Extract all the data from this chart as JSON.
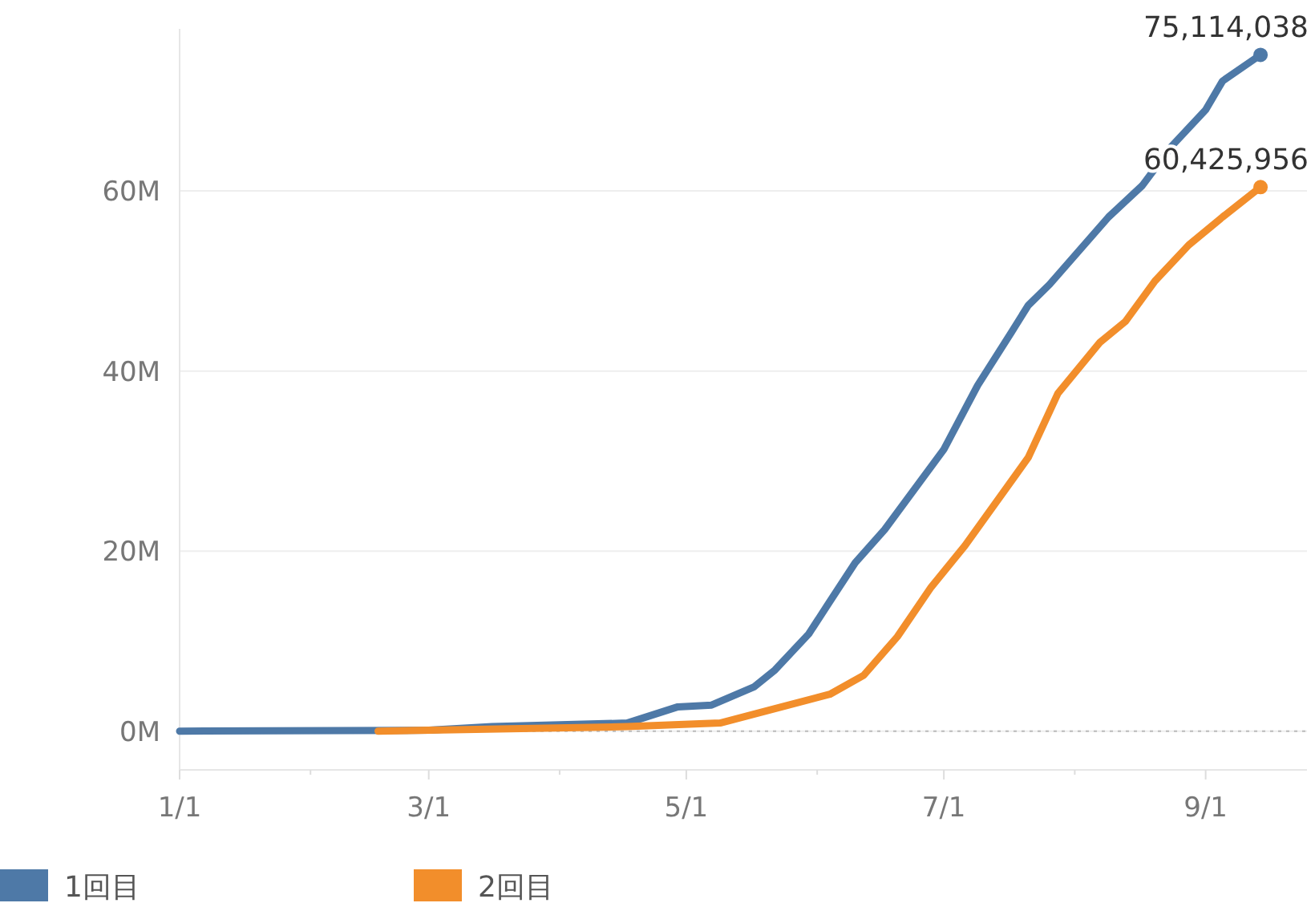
{
  "chart_data": {
    "type": "line",
    "xlim": [
      "--01-01",
      "--09-25"
    ],
    "xticks": [
      {
        "value": "--01-01",
        "label": "1/1"
      },
      {
        "value": "--02-01",
        "label": null
      },
      {
        "value": "--03-01",
        "label": "3/1"
      },
      {
        "value": "--04-01",
        "label": null
      },
      {
        "value": "--05-01",
        "label": "5/1"
      },
      {
        "value": "--06-01",
        "label": null
      },
      {
        "value": "--07-01",
        "label": "7/1"
      },
      {
        "value": "--08-01",
        "label": null
      },
      {
        "value": "--09-01",
        "label": "9/1"
      }
    ],
    "ylim": [
      -4300000,
      78000000
    ],
    "yticks": [
      {
        "value": 0,
        "label": "0M"
      },
      {
        "value": 20000000,
        "label": "20M"
      },
      {
        "value": 40000000,
        "label": "40M"
      },
      {
        "value": 60000000,
        "label": "60M"
      }
    ],
    "grid": "y",
    "legend": "bottom",
    "ref_lines": [
      {
        "axis": "y",
        "value": 0,
        "line_style": "dotted",
        "color": "#bbbbbb"
      }
    ],
    "series": [
      {
        "name": "1回目",
        "color": "#4e79a7",
        "x": [
          "--01-01",
          "--03-01",
          "--03-16",
          "--04-17",
          "--04-29",
          "--05-07",
          "--05-17",
          "--05-22",
          "--05-30",
          "--06-04",
          "--06-10",
          "--06-17",
          "--07-01",
          "--07-09",
          "--07-17",
          "--07-21",
          "--07-26",
          "--08-09",
          "--08-17",
          "--08-24",
          "--09-01",
          "--09-05",
          "--09-14"
        ],
        "values": [
          0,
          100000,
          500000,
          900000,
          2700000,
          2900000,
          4900000,
          6800000,
          10800000,
          14400000,
          18700000,
          22400000,
          31300000,
          38400000,
          44300000,
          47300000,
          49600000,
          57100000,
          60600000,
          65000000,
          69000000,
          72200000,
          75114038
        ],
        "value_labels": [
          null,
          null,
          null,
          null,
          null,
          null,
          null,
          null,
          null,
          null,
          null,
          null,
          null,
          null,
          null,
          null,
          null,
          null,
          null,
          null,
          null,
          null,
          "75,114,038"
        ]
      },
      {
        "name": "2回目",
        "color": "#f28e2b",
        "x": [
          "--02-17",
          "--04-17",
          "--05-09",
          "--05-22",
          "--06-04",
          "--06-12",
          "--06-20",
          "--06-28",
          "--07-06",
          "--07-21",
          "--07-28",
          "--08-07",
          "--08-13",
          "--08-20",
          "--08-28",
          "--09-05",
          "--09-14"
        ],
        "values": [
          0,
          500000,
          900000,
          2500000,
          4100000,
          6200000,
          10500000,
          16000000,
          20600000,
          30400000,
          37500000,
          43200000,
          45500000,
          50000000,
          54000000,
          57100000,
          60425956
        ],
        "value_labels": [
          null,
          null,
          null,
          null,
          null,
          null,
          null,
          null,
          null,
          null,
          null,
          null,
          null,
          null,
          null,
          null,
          "60,425,956"
        ]
      }
    ]
  }
}
